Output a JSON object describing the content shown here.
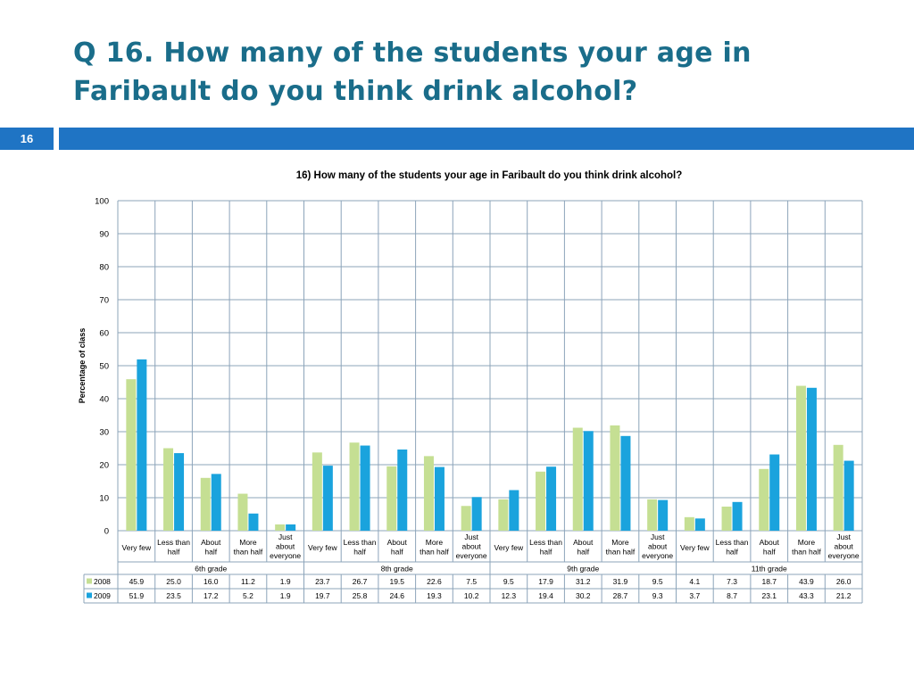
{
  "slide": {
    "title": "Q 16. How many of the students your age in Faribault do you think drink alcohol?",
    "page_number": "16"
  },
  "colors": {
    "accent": "#1f74c4",
    "title": "#1a6d8a",
    "series_2008": "#c5df93",
    "series_2009": "#1aa3dd"
  },
  "chart_data": {
    "type": "bar",
    "title": "16) How many of the students your age in Faribault do you think drink alcohol?",
    "ylabel": "Percentage of class",
    "xlabel": "",
    "ylim": [
      0,
      100
    ],
    "yticks": [
      "0",
      "10",
      "20",
      "30",
      "40",
      "50",
      "60",
      "70",
      "80",
      "90",
      "100"
    ],
    "grid": true,
    "legend": "table-left",
    "categories": [
      "Very few",
      "Less than half",
      "About half",
      "More than half",
      "Just about everyone",
      "Very few",
      "Less than half",
      "About half",
      "More than half",
      "Just about everyone",
      "Very few",
      "Less than half",
      "About half",
      "More than half",
      "Just about everyone",
      "Very few",
      "Less than half",
      "About half",
      "More than half",
      "Just about everyone"
    ],
    "category_lines": [
      [
        "Very few"
      ],
      [
        "Less than",
        "half"
      ],
      [
        "About",
        "half"
      ],
      [
        "More",
        "than half"
      ],
      [
        "Just",
        "about",
        "everyone"
      ],
      [
        "Very few"
      ],
      [
        "Less than",
        "half"
      ],
      [
        "About",
        "half"
      ],
      [
        "More",
        "than half"
      ],
      [
        "Just",
        "about",
        "everyone"
      ],
      [
        "Very few"
      ],
      [
        "Less than",
        "half"
      ],
      [
        "About",
        "half"
      ],
      [
        "More",
        "than half"
      ],
      [
        "Just",
        "about",
        "everyone"
      ],
      [
        "Very few"
      ],
      [
        "Less than",
        "half"
      ],
      [
        "About",
        "half"
      ],
      [
        "More",
        "than half"
      ],
      [
        "Just",
        "about",
        "everyone"
      ]
    ],
    "groups": [
      "6th grade",
      "8th grade",
      "9th grade",
      "11th grade"
    ],
    "series": [
      {
        "name": "2008",
        "color": "#c5df93",
        "values": [
          45.9,
          25.0,
          16.0,
          11.2,
          1.9,
          23.7,
          26.7,
          19.5,
          22.6,
          7.5,
          9.5,
          17.9,
          31.2,
          31.9,
          9.5,
          4.1,
          7.3,
          18.7,
          43.9,
          26.0
        ],
        "labels": [
          "45.9",
          "25.0",
          "16.0",
          "11.2",
          "1.9",
          "23.7",
          "26.7",
          "19.5",
          "22.6",
          "7.5",
          "9.5",
          "17.9",
          "31.2",
          "31.9",
          "9.5",
          "4.1",
          "7.3",
          "18.7",
          "43.9",
          "26.0"
        ]
      },
      {
        "name": "2009",
        "color": "#1aa3dd",
        "values": [
          51.9,
          23.5,
          17.2,
          5.2,
          1.9,
          19.7,
          25.8,
          24.6,
          19.3,
          10.2,
          12.3,
          19.4,
          30.2,
          28.7,
          9.3,
          3.7,
          8.7,
          23.1,
          43.3,
          21.2
        ],
        "labels": [
          "51.9",
          "23.5",
          "17.2",
          "5.2",
          "1.9",
          "19.7",
          "25.8",
          "24.6",
          "19.3",
          "10.2",
          "12.3",
          "19.4",
          "30.2",
          "28.7",
          "9.3",
          "3.7",
          "8.7",
          "23.1",
          "43.3",
          "21.2"
        ]
      }
    ]
  }
}
